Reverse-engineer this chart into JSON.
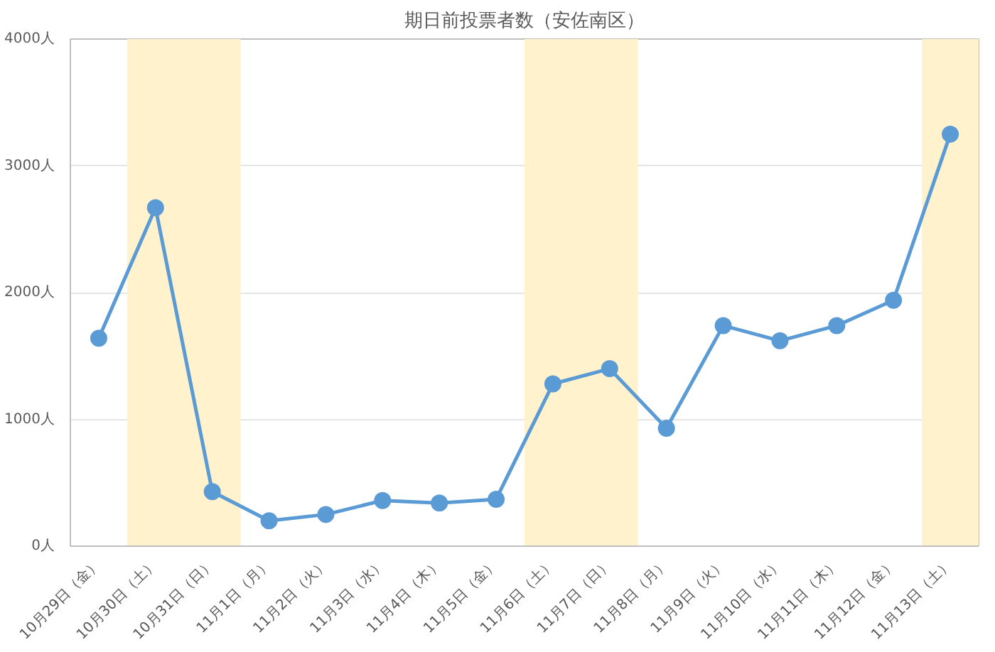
{
  "chart_data": {
    "type": "line",
    "title": "期日前投票者数（安佐南区）",
    "categories": [
      "10月29日（金）",
      "10月30日（土）",
      "10月31日（日）",
      "11月1日（月）",
      "11月2日（火）",
      "11月3日（水）",
      "11月4日（木）",
      "11月5日（金）",
      "11月6日（土）",
      "11月7日（日）",
      "11月8日（月）",
      "11月9日（火）",
      "11月10日（水）",
      "11月11日（木）",
      "11月12日（金）",
      "11月13日（土）"
    ],
    "series": [
      {
        "color": "#5b9bd5",
        "values": [
          1640,
          2670,
          430,
          200,
          250,
          360,
          340,
          370,
          1280,
          1400,
          930,
          1740,
          1620,
          1740,
          1940,
          3250
        ]
      }
    ],
    "ylim": [
      0,
      4000
    ],
    "yticks": [
      {
        "value": 0,
        "label": "0人"
      },
      {
        "value": 1000,
        "label": "1000人"
      },
      {
        "value": 2000,
        "label": "2000人"
      },
      {
        "value": 3000,
        "label": "3000人"
      },
      {
        "value": 4000,
        "label": "4000人"
      }
    ],
    "bands": [
      {
        "axis": "x",
        "from": "10月30日（土）",
        "to": "10月31日（日）",
        "color": "#fff2cc"
      },
      {
        "axis": "x",
        "from": "11月6日（土）",
        "to": "11月7日（日）",
        "color": "#fff2cc"
      },
      {
        "axis": "x",
        "from": "11月13日（土）",
        "to": "11月13日（土）",
        "color": "#fff2cc"
      }
    ],
    "grid": "y",
    "marker": "circle",
    "line_style": "solid"
  }
}
